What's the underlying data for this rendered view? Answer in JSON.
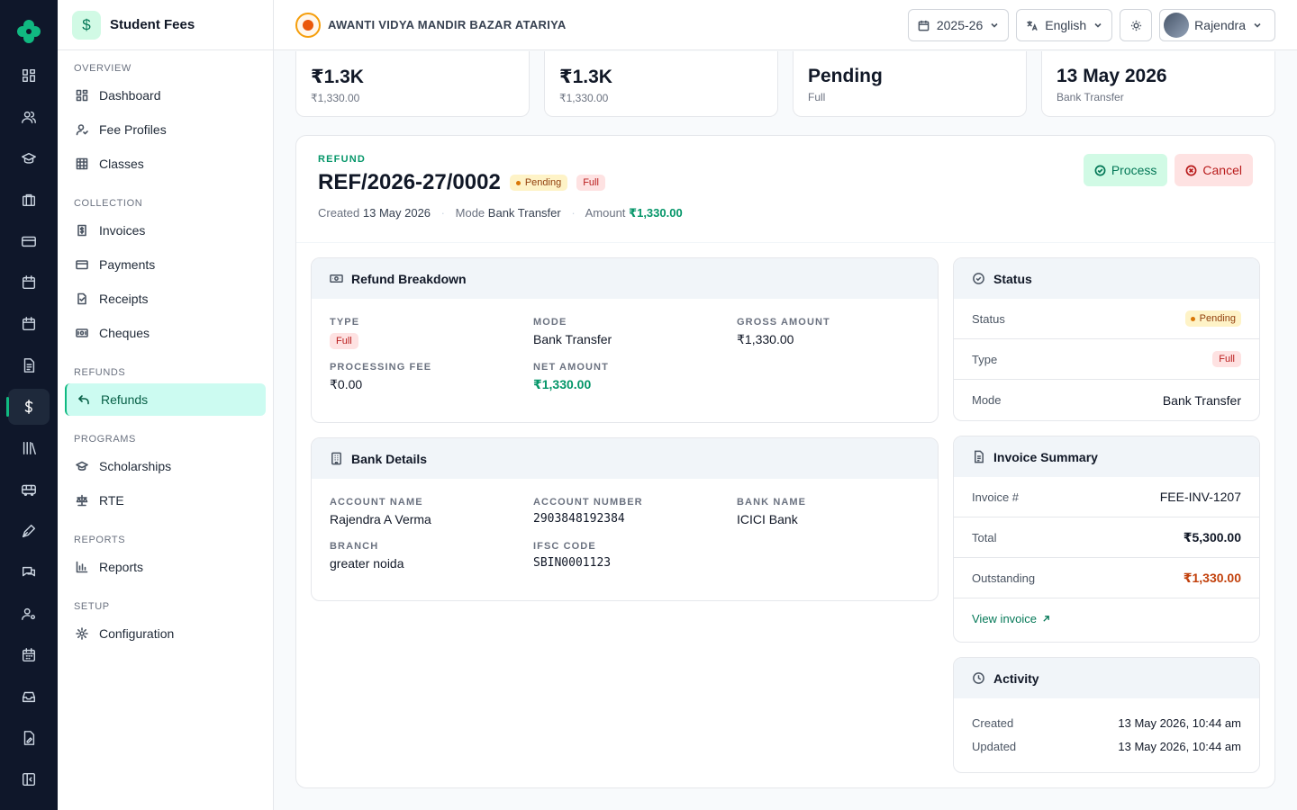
{
  "rail": {
    "icons": [
      "logo-icon",
      "dashboard-icon",
      "users-icon",
      "graduation-icon",
      "briefcase-icon",
      "card-icon",
      "calendar-icon",
      "calendar-alt-icon",
      "document-icon",
      "dollar-icon",
      "library-icon",
      "bus-icon",
      "pen-icon",
      "chat-icon",
      "user-settings-icon",
      "calendar-grid-icon",
      "inbox-icon",
      "file-edit-icon",
      "collapse-icon"
    ]
  },
  "sidebar": {
    "title": "Student Fees",
    "groups": [
      {
        "label": "OVERVIEW",
        "items": [
          {
            "label": "Dashboard"
          },
          {
            "label": "Fee Profiles"
          },
          {
            "label": "Classes"
          }
        ]
      },
      {
        "label": "COLLECTION",
        "items": [
          {
            "label": "Invoices"
          },
          {
            "label": "Payments"
          },
          {
            "label": "Receipts"
          },
          {
            "label": "Cheques"
          }
        ]
      },
      {
        "label": "REFUNDS",
        "items": [
          {
            "label": "Refunds"
          }
        ]
      },
      {
        "label": "PROGRAMS",
        "items": [
          {
            "label": "Scholarships"
          },
          {
            "label": "RTE"
          }
        ]
      },
      {
        "label": "REPORTS",
        "items": [
          {
            "label": "Reports"
          }
        ]
      },
      {
        "label": "SETUP",
        "items": [
          {
            "label": "Configuration"
          }
        ]
      }
    ]
  },
  "header": {
    "school": "AWANTI VIDYA MANDIR BAZAR ATARIYA",
    "year": "2025-26",
    "language": "English",
    "user": "Rajendra"
  },
  "stats": [
    {
      "value": "₹1.3K",
      "sub": "₹1,330.00"
    },
    {
      "value": "₹1.3K",
      "sub": "₹1,330.00"
    },
    {
      "value": "Pending",
      "sub": "Full"
    },
    {
      "value": "13 May 2026",
      "sub": "Bank Transfer"
    }
  ],
  "refund": {
    "eyebrow": "REFUND",
    "number": "REF/2026-27/0002",
    "status_badge": "Pending",
    "type_badge": "Full",
    "meta": {
      "created_label": "Created",
      "created": "13 May 2026",
      "mode_label": "Mode",
      "mode": "Bank Transfer",
      "amount_label": "Amount",
      "amount": "₹1,330.00"
    },
    "process_label": "Process",
    "cancel_label": "Cancel"
  },
  "breakdown": {
    "title": "Refund Breakdown",
    "type_label": "TYPE",
    "type": "Full",
    "mode_label": "MODE",
    "mode": "Bank Transfer",
    "gross_label": "GROSS AMOUNT",
    "gross": "₹1,330.00",
    "fee_label": "PROCESSING FEE",
    "fee": "₹0.00",
    "net_label": "NET AMOUNT",
    "net": "₹1,330.00"
  },
  "bank": {
    "title": "Bank Details",
    "acct_name_label": "ACCOUNT NAME",
    "acct_name": "Rajendra A Verma",
    "acct_no_label": "ACCOUNT NUMBER",
    "acct_no": "2903848192384",
    "bank_label": "BANK NAME",
    "bank": "ICICI Bank",
    "branch_label": "BRANCH",
    "branch": "greater noida",
    "ifsc_label": "IFSC CODE",
    "ifsc": "SBIN0001123"
  },
  "status_panel": {
    "title": "Status",
    "status_label": "Status",
    "status": "Pending",
    "type_label": "Type",
    "type": "Full",
    "mode_label": "Mode",
    "mode": "Bank Transfer"
  },
  "invoice": {
    "title": "Invoice Summary",
    "no_label": "Invoice #",
    "no": "FEE-INV-1207",
    "total_label": "Total",
    "total": "₹5,300.00",
    "outstanding_label": "Outstanding",
    "outstanding": "₹1,330.00",
    "view_label": "View invoice"
  },
  "activity": {
    "title": "Activity",
    "created_label": "Created",
    "created": "13 May 2026, 10:44 am",
    "updated_label": "Updated",
    "updated": "13 May 2026, 10:44 am"
  },
  "colors": {
    "accent": "#10b981",
    "rail": "#0f172a",
    "danger": "#b91c1c",
    "warning": "#c2410c"
  }
}
